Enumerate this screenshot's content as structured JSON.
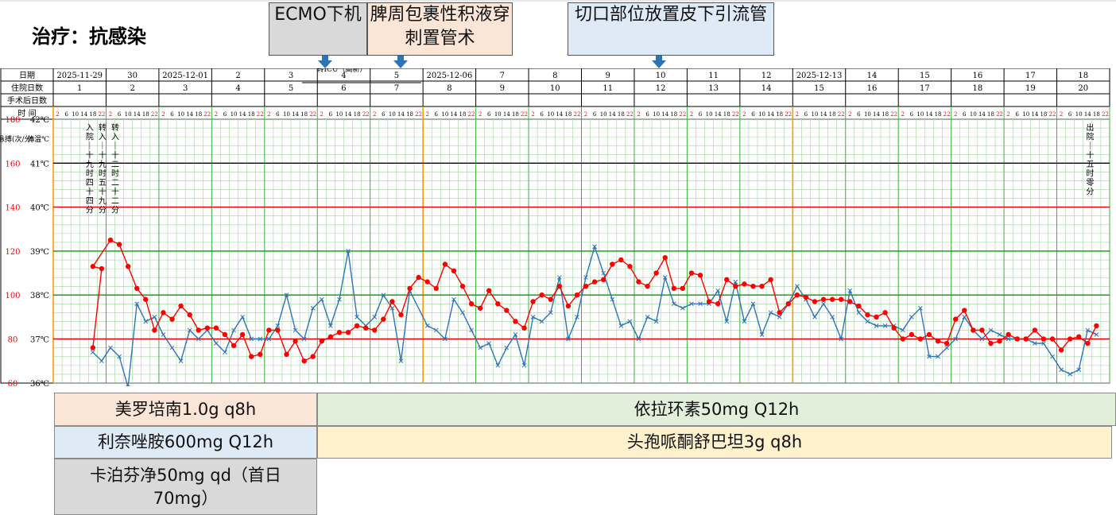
{
  "title": "治疗：抗感染",
  "callouts": [
    {
      "text": "ECMO下机",
      "bg": "#d9d9d9"
    },
    {
      "text": "脾周包裹性积液穿刺置管术",
      "bg": "#fbe5d6"
    },
    {
      "text": "切口部位放置皮下引流管",
      "bg": "#deebf7"
    }
  ],
  "drugs": [
    {
      "text": "美罗培南1.0g q8h",
      "bg": "#fbe5d6"
    },
    {
      "text": "依拉环素50mg  Q12h",
      "bg": "#e2efda"
    },
    {
      "text": "利奈唑胺600mg Q12h",
      "bg": "#deebf7"
    },
    {
      "text": "头孢哌酮舒巴坦3g q8h",
      "bg": "#fff2cc"
    },
    {
      "text": "卡泊芬净50mg qd（首日70mg）",
      "bg": "#d9d9d9"
    }
  ],
  "table": {
    "row_labels": [
      "日期",
      "住院日数",
      "手术后日数",
      "时 间"
    ],
    "dates": [
      "2025-11-29",
      "30",
      "2025-12-01",
      "2",
      "3",
      "4",
      "5",
      "2025-12-06",
      "7",
      "8",
      "9",
      "10",
      "11",
      "12",
      "2025-12-13",
      "14",
      "15",
      "16",
      "17",
      "18"
    ],
    "hospital_days": [
      "1",
      "2",
      "3",
      "4",
      "5",
      "6",
      "7",
      "8",
      "9",
      "10",
      "11",
      "12",
      "13",
      "14",
      "15",
      "16",
      "17",
      "18",
      "19",
      "20"
    ],
    "hours": [
      "2",
      "6",
      "10",
      "14",
      "18",
      "22"
    ],
    "overlay_text": "转ICU（高新）"
  },
  "axes": {
    "pulse_label": "脉搏(次/分)",
    "temp_label": "体温℃",
    "pulse_ticks": [
      "180",
      "160",
      "140",
      "120",
      "100",
      "80",
      "60"
    ],
    "temp_ticks": [
      "42℃",
      "41℃",
      "40℃",
      "39℃",
      "38℃",
      "37℃",
      "36℃"
    ]
  },
  "annotations": [
    {
      "day": 1,
      "text": "入院｜十九时四十四分"
    },
    {
      "day": 1,
      "text": "转入｜十九时五十九分"
    },
    {
      "day": 2,
      "text": "转入｜十二时二十二分"
    },
    {
      "day": 20,
      "text": "出院｜十五时零分"
    }
  ],
  "chart_data": {
    "type": "line",
    "x_unit": "hospital day / 4-hour slot (2,6,10,14,18,22)",
    "ylim_temperature": [
      36,
      42
    ],
    "ylim_pulse": [
      60,
      180
    ],
    "series": [
      {
        "name": "体温",
        "color": "#2e75b6",
        "marker": "x",
        "points": [
          [
            0,
            4,
            36.7
          ],
          [
            0,
            5,
            36.5
          ],
          [
            1,
            0,
            36.8
          ],
          [
            1,
            1,
            36.6
          ],
          [
            1,
            2,
            35.9
          ],
          [
            1,
            3,
            37.8
          ],
          [
            1,
            4,
            37.4
          ],
          [
            1,
            5,
            37.5
          ],
          [
            2,
            0,
            37.1
          ],
          [
            2,
            1,
            36.8
          ],
          [
            2,
            2,
            36.5
          ],
          [
            2,
            3,
            37.2
          ],
          [
            2,
            4,
            37.0
          ],
          [
            2,
            5,
            37.2
          ],
          [
            3,
            0,
            36.9
          ],
          [
            3,
            1,
            36.7
          ],
          [
            3,
            2,
            37.2
          ],
          [
            3,
            3,
            37.5
          ],
          [
            3,
            4,
            37.0
          ],
          [
            3,
            5,
            37.0
          ],
          [
            4,
            0,
            37.0
          ],
          [
            4,
            1,
            37.3
          ],
          [
            4,
            2,
            38.0
          ],
          [
            4,
            3,
            37.2
          ],
          [
            4,
            4,
            37.0
          ],
          [
            4,
            5,
            37.7
          ],
          [
            5,
            0,
            37.9
          ],
          [
            5,
            1,
            37.3
          ],
          [
            5,
            2,
            37.9
          ],
          [
            5,
            3,
            39.0
          ],
          [
            5,
            4,
            37.5
          ],
          [
            5,
            5,
            37.3
          ],
          [
            6,
            0,
            37.5
          ],
          [
            6,
            1,
            38.0
          ],
          [
            6,
            2,
            37.7
          ],
          [
            6,
            3,
            36.5
          ],
          [
            6,
            4,
            38.1
          ],
          [
            7,
            0,
            37.3
          ],
          [
            7,
            1,
            37.2
          ],
          [
            7,
            2,
            37.0
          ],
          [
            7,
            3,
            37.9
          ],
          [
            7,
            4,
            37.6
          ],
          [
            7,
            5,
            37.2
          ],
          [
            8,
            0,
            36.8
          ],
          [
            8,
            1,
            36.9
          ],
          [
            8,
            2,
            36.4
          ],
          [
            8,
            3,
            36.8
          ],
          [
            8,
            4,
            37.1
          ],
          [
            8,
            5,
            36.4
          ],
          [
            9,
            0,
            37.5
          ],
          [
            9,
            1,
            37.4
          ],
          [
            9,
            2,
            37.6
          ],
          [
            9,
            3,
            38.4
          ],
          [
            9,
            4,
            37.0
          ],
          [
            9,
            5,
            37.5
          ],
          [
            10,
            0,
            38.4
          ],
          [
            10,
            1,
            39.1
          ],
          [
            10,
            2,
            38.5
          ],
          [
            10,
            3,
            37.9
          ],
          [
            10,
            4,
            37.3
          ],
          [
            10,
            5,
            37.4
          ],
          [
            11,
            0,
            37.0
          ],
          [
            11,
            1,
            37.5
          ],
          [
            11,
            2,
            37.4
          ],
          [
            11,
            3,
            38.4
          ],
          [
            11,
            4,
            37.8
          ],
          [
            11,
            5,
            37.7
          ],
          [
            12,
            0,
            37.8
          ],
          [
            12,
            1,
            37.8
          ],
          [
            12,
            2,
            37.8
          ],
          [
            12,
            3,
            38.1
          ],
          [
            12,
            4,
            37.4
          ],
          [
            12,
            5,
            38.3
          ],
          [
            13,
            0,
            37.4
          ],
          [
            13,
            1,
            37.8
          ],
          [
            13,
            2,
            37.1
          ],
          [
            13,
            3,
            37.6
          ],
          [
            13,
            4,
            37.5
          ],
          [
            13,
            5,
            37.8
          ],
          [
            14,
            0,
            38.2
          ],
          [
            14,
            1,
            37.9
          ],
          [
            14,
            2,
            37.5
          ],
          [
            14,
            3,
            37.8
          ],
          [
            14,
            4,
            37.5
          ],
          [
            14,
            5,
            37.0
          ],
          [
            15,
            0,
            38.1
          ],
          [
            15,
            1,
            37.6
          ],
          [
            15,
            2,
            37.4
          ],
          [
            15,
            3,
            37.3
          ],
          [
            15,
            4,
            37.3
          ],
          [
            15,
            5,
            37.3
          ],
          [
            16,
            0,
            37.2
          ],
          [
            16,
            1,
            37.5
          ],
          [
            16,
            2,
            37.7
          ],
          [
            16,
            3,
            36.6
          ],
          [
            16,
            4,
            36.6
          ],
          [
            16,
            5,
            36.8
          ],
          [
            17,
            0,
            37.0
          ],
          [
            17,
            1,
            37.5
          ],
          [
            17,
            2,
            37.2
          ],
          [
            17,
            3,
            37.0
          ],
          [
            17,
            4,
            37.2
          ],
          [
            17,
            5,
            37.1
          ],
          [
            18,
            0,
            37.0
          ],
          [
            18,
            1,
            37.0
          ],
          [
            18,
            2,
            37.0
          ],
          [
            18,
            3,
            36.9
          ],
          [
            18,
            4,
            36.9
          ],
          [
            18,
            5,
            36.6
          ],
          [
            19,
            0,
            36.3
          ],
          [
            19,
            1,
            36.2
          ],
          [
            19,
            2,
            36.3
          ],
          [
            19,
            3,
            37.2
          ],
          [
            19,
            4,
            37.1
          ]
        ]
      },
      {
        "name": "脉搏",
        "color": "#ff0000",
        "marker": "dot",
        "points": [
          [
            0,
            4,
            76
          ],
          [
            0,
            5,
            112
          ],
          [
            0,
            4,
            113
          ],
          [
            1,
            0,
            125
          ],
          [
            1,
            1,
            123
          ],
          [
            1,
            2,
            113
          ],
          [
            1,
            3,
            103
          ],
          [
            1,
            4,
            98
          ],
          [
            1,
            5,
            84
          ],
          [
            2,
            0,
            92
          ],
          [
            2,
            1,
            89
          ],
          [
            2,
            2,
            95
          ],
          [
            2,
            3,
            91
          ],
          [
            2,
            4,
            84
          ],
          [
            2,
            5,
            85
          ],
          [
            3,
            0,
            85
          ],
          [
            3,
            1,
            82
          ],
          [
            3,
            2,
            77
          ],
          [
            3,
            3,
            82
          ],
          [
            3,
            4,
            72
          ],
          [
            3,
            5,
            73
          ],
          [
            4,
            0,
            84
          ],
          [
            4,
            1,
            84
          ],
          [
            4,
            2,
            73
          ],
          [
            4,
            3,
            79
          ],
          [
            4,
            4,
            70
          ],
          [
            4,
            5,
            72
          ],
          [
            5,
            0,
            79
          ],
          [
            5,
            1,
            81
          ],
          [
            5,
            2,
            83
          ],
          [
            5,
            3,
            83
          ],
          [
            5,
            4,
            86
          ],
          [
            5,
            5,
            85
          ],
          [
            6,
            0,
            84
          ],
          [
            6,
            1,
            89
          ],
          [
            6,
            2,
            97
          ],
          [
            6,
            3,
            91
          ],
          [
            6,
            4,
            103
          ],
          [
            6,
            5,
            108
          ],
          [
            7,
            0,
            106
          ],
          [
            7,
            1,
            103
          ],
          [
            7,
            2,
            114
          ],
          [
            7,
            3,
            111
          ],
          [
            7,
            4,
            104
          ],
          [
            7,
            5,
            96
          ],
          [
            8,
            0,
            94
          ],
          [
            8,
            1,
            102
          ],
          [
            8,
            2,
            96
          ],
          [
            8,
            3,
            93
          ],
          [
            8,
            4,
            88
          ],
          [
            8,
            5,
            85
          ],
          [
            9,
            0,
            97
          ],
          [
            9,
            1,
            100
          ],
          [
            9,
            2,
            98
          ],
          [
            9,
            3,
            104
          ],
          [
            9,
            4,
            95
          ],
          [
            9,
            5,
            100
          ],
          [
            10,
            0,
            104
          ],
          [
            10,
            1,
            106
          ],
          [
            10,
            2,
            107
          ],
          [
            10,
            3,
            114
          ],
          [
            10,
            4,
            116
          ],
          [
            10,
            5,
            113
          ],
          [
            11,
            0,
            106
          ],
          [
            11,
            1,
            104
          ],
          [
            11,
            2,
            110
          ],
          [
            11,
            3,
            117
          ],
          [
            11,
            4,
            103
          ],
          [
            11,
            5,
            103
          ],
          [
            12,
            0,
            110
          ],
          [
            12,
            1,
            109
          ],
          [
            12,
            2,
            97
          ],
          [
            12,
            3,
            96
          ],
          [
            12,
            4,
            107
          ],
          [
            12,
            5,
            104
          ],
          [
            13,
            0,
            105
          ],
          [
            13,
            1,
            104
          ],
          [
            13,
            2,
            104
          ],
          [
            13,
            3,
            107
          ],
          [
            13,
            4,
            92
          ],
          [
            13,
            5,
            96
          ],
          [
            14,
            0,
            100
          ],
          [
            14,
            1,
            99
          ],
          [
            14,
            2,
            97
          ],
          [
            14,
            3,
            98
          ],
          [
            14,
            4,
            98
          ],
          [
            14,
            5,
            98
          ],
          [
            15,
            0,
            97
          ],
          [
            15,
            1,
            95
          ],
          [
            15,
            2,
            91
          ],
          [
            15,
            3,
            90
          ],
          [
            15,
            4,
            92
          ],
          [
            15,
            5,
            85
          ],
          [
            16,
            0,
            80
          ],
          [
            16,
            1,
            82
          ],
          [
            16,
            2,
            80
          ],
          [
            16,
            3,
            82
          ],
          [
            16,
            4,
            79
          ],
          [
            16,
            5,
            78
          ],
          [
            17,
            0,
            89
          ],
          [
            17,
            1,
            93
          ],
          [
            17,
            2,
            84
          ],
          [
            17,
            3,
            84
          ],
          [
            17,
            4,
            78
          ],
          [
            17,
            5,
            79
          ],
          [
            18,
            0,
            82
          ],
          [
            18,
            1,
            80
          ],
          [
            18,
            2,
            80
          ],
          [
            18,
            3,
            84
          ],
          [
            18,
            4,
            80
          ],
          [
            18,
            5,
            80
          ],
          [
            19,
            0,
            75
          ],
          [
            19,
            1,
            80
          ],
          [
            19,
            2,
            81
          ],
          [
            19,
            3,
            78
          ],
          [
            19,
            4,
            86
          ]
        ]
      }
    ]
  }
}
